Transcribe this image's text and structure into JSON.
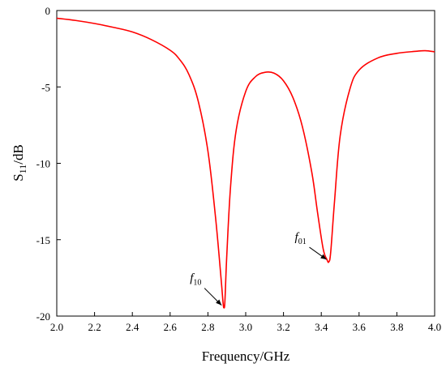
{
  "chart_data": {
    "type": "line",
    "xlabel": "Frequency/GHz",
    "ylabel_main": "S",
    "ylabel_sub": "11",
    "ylabel_unit": "/dB",
    "xlim": [
      2.0,
      4.0
    ],
    "ylim": [
      -20,
      0
    ],
    "xticks": [
      "2.0",
      "2.2",
      "2.4",
      "2.6",
      "2.8",
      "3.0",
      "3.2",
      "3.4",
      "3.6",
      "3.8",
      "4.0"
    ],
    "yticks": [
      "0",
      "-5",
      "-10",
      "-15",
      "-20"
    ],
    "grid": false,
    "line_color": "#ff0000",
    "series": [
      {
        "x": [
          2.0,
          2.1,
          2.2,
          2.3,
          2.4,
          2.5,
          2.6,
          2.65,
          2.7,
          2.75,
          2.8,
          2.84,
          2.87,
          2.88,
          2.885,
          2.89,
          2.9,
          2.92,
          2.95,
          3.0,
          3.05,
          3.1,
          3.15,
          3.2,
          3.25,
          3.3,
          3.35,
          3.38,
          3.41,
          3.43,
          3.44,
          3.45,
          3.47,
          3.5,
          3.55,
          3.6,
          3.7,
          3.8,
          3.9,
          3.95,
          4.0
        ],
        "y": [
          -0.5,
          -0.65,
          -0.85,
          -1.1,
          -1.4,
          -1.9,
          -2.6,
          -3.2,
          -4.2,
          -6.0,
          -9.2,
          -13.5,
          -17.6,
          -19.1,
          -19.45,
          -19.0,
          -16.0,
          -11.5,
          -7.8,
          -5.3,
          -4.35,
          -4.05,
          -4.1,
          -4.6,
          -5.7,
          -7.6,
          -10.6,
          -13.2,
          -15.6,
          -16.3,
          -16.45,
          -15.8,
          -12.5,
          -8.2,
          -5.2,
          -3.9,
          -3.1,
          -2.8,
          -2.67,
          -2.63,
          -2.7
        ]
      }
    ],
    "annotations": [
      {
        "label": "f",
        "sub": "10",
        "x": 2.885,
        "y": -19.45
      },
      {
        "label": "f",
        "sub": "01",
        "x": 3.44,
        "y": -16.45
      }
    ]
  }
}
